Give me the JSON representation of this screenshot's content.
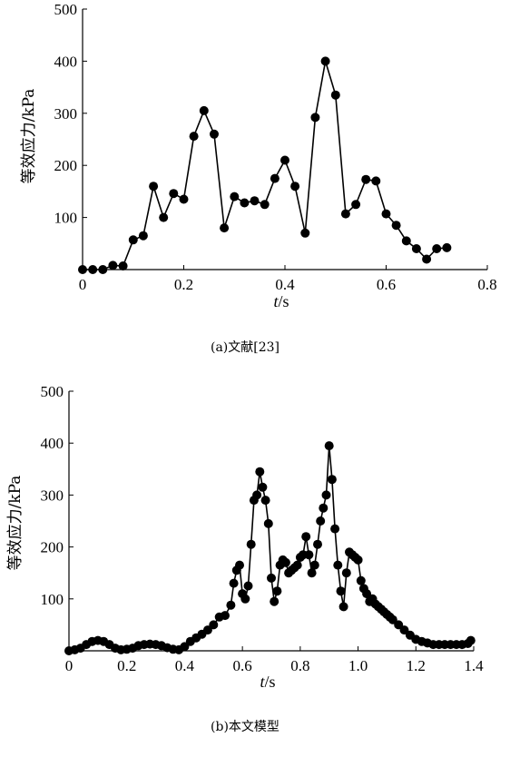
{
  "chart_data": [
    {
      "type": "line",
      "caption": "(a)文献[23]",
      "xlabel_italic": "t",
      "xlabel_unit": "/s",
      "ylabel": "等效应力/kPa",
      "xlim": [
        0,
        0.8
      ],
      "ylim": [
        0,
        500
      ],
      "xticks": [
        "0",
        "0.2",
        "0.4",
        "0.6",
        "0.8"
      ],
      "yticks": [
        "100",
        "200",
        "300",
        "400",
        "500"
      ],
      "grid": false,
      "marker": "filled-circle",
      "series": [
        {
          "x": [
            0,
            0.02,
            0.04,
            0.06,
            0.08,
            0.1,
            0.12,
            0.14,
            0.16,
            0.18,
            0.2,
            0.22,
            0.24,
            0.26,
            0.28,
            0.3,
            0.32,
            0.34,
            0.36,
            0.38,
            0.4,
            0.42,
            0.44,
            0.46,
            0.48,
            0.5,
            0.52,
            0.54,
            0.56,
            0.58,
            0.6,
            0.62,
            0.64,
            0.66,
            0.68,
            0.7,
            0.72
          ],
          "y": [
            0,
            0,
            0,
            8,
            7,
            57,
            65,
            160,
            100,
            146,
            135,
            256,
            305,
            260,
            80,
            140,
            128,
            132,
            125,
            175,
            210,
            160,
            70,
            292,
            400,
            335,
            107,
            125,
            173,
            170,
            107,
            85,
            55,
            40,
            20,
            40,
            42
          ]
        }
      ]
    },
    {
      "type": "line",
      "caption": "(b)本文模型",
      "xlabel_italic": "t",
      "xlabel_unit": "/s",
      "ylabel": "等效应力/kPa",
      "xlim": [
        0,
        1.4
      ],
      "ylim": [
        0,
        500
      ],
      "xticks": [
        "0",
        "0.2",
        "0.4",
        "0.6",
        "0.8",
        "1.0",
        "1.2",
        "1.4"
      ],
      "yticks": [
        "100",
        "200",
        "300",
        "400",
        "500"
      ],
      "grid": false,
      "marker": "filled-circle",
      "series": [
        {
          "x": [
            0,
            0.02,
            0.04,
            0.06,
            0.08,
            0.1,
            0.12,
            0.14,
            0.16,
            0.18,
            0.2,
            0.22,
            0.24,
            0.26,
            0.28,
            0.3,
            0.32,
            0.34,
            0.36,
            0.38,
            0.4,
            0.42,
            0.44,
            0.46,
            0.48,
            0.5,
            0.52,
            0.54,
            0.56,
            0.57,
            0.58,
            0.59,
            0.6,
            0.61,
            0.62,
            0.63,
            0.64,
            0.65,
            0.66,
            0.67,
            0.68,
            0.69,
            0.7,
            0.71,
            0.72,
            0.73,
            0.74,
            0.75,
            0.76,
            0.77,
            0.78,
            0.79,
            0.8,
            0.81,
            0.82,
            0.83,
            0.84,
            0.85,
            0.86,
            0.87,
            0.88,
            0.89,
            0.9,
            0.91,
            0.92,
            0.93,
            0.94,
            0.95,
            0.96,
            0.97,
            0.98,
            0.99,
            1.0,
            1.01,
            1.02,
            1.03,
            1.04,
            1.05,
            1.06,
            1.07,
            1.08,
            1.09,
            1.1,
            1.11,
            1.12,
            1.14,
            1.16,
            1.18,
            1.2,
            1.22,
            1.24,
            1.26,
            1.28,
            1.3,
            1.32,
            1.34,
            1.36,
            1.38,
            1.39
          ],
          "y": [
            0,
            2,
            5,
            12,
            18,
            20,
            18,
            12,
            5,
            2,
            3,
            5,
            10,
            12,
            13,
            12,
            10,
            6,
            3,
            2,
            8,
            18,
            25,
            32,
            40,
            50,
            65,
            68,
            88,
            130,
            155,
            165,
            110,
            100,
            125,
            205,
            290,
            300,
            345,
            315,
            290,
            245,
            140,
            95,
            115,
            165,
            175,
            170,
            150,
            155,
            160,
            165,
            180,
            185,
            220,
            185,
            150,
            165,
            205,
            250,
            275,
            300,
            395,
            330,
            235,
            165,
            115,
            85,
            150,
            190,
            185,
            180,
            175,
            135,
            120,
            110,
            95,
            100,
            90,
            85,
            80,
            75,
            70,
            65,
            60,
            50,
            40,
            30,
            22,
            18,
            15,
            12,
            12,
            12,
            12,
            12,
            12,
            14,
            20
          ]
        }
      ]
    }
  ]
}
